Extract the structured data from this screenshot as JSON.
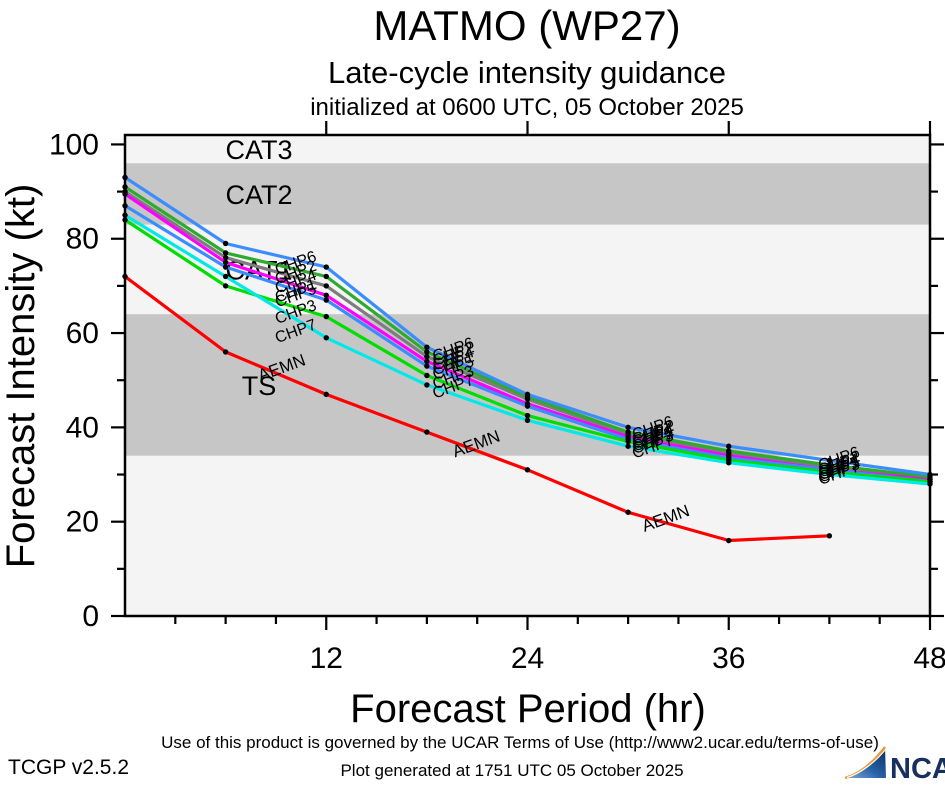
{
  "header": {
    "title": "MATMO (WP27)",
    "subtitle": "Late-cycle intensity guidance",
    "initialized": "initialized at 0600 UTC, 05 October 2025"
  },
  "chart_data": {
    "type": "line",
    "title": "MATMO (WP27)",
    "xlabel": "Forecast Period (hr)",
    "ylabel": "Forecast Intensity (kt)",
    "xlim": [
      0,
      48
    ],
    "ylim": [
      0,
      102
    ],
    "x_ticks": [
      12,
      24,
      36,
      48
    ],
    "x_minor_step": 3,
    "y_ticks": [
      0,
      20,
      40,
      60,
      80,
      100
    ],
    "y_minor_step": 10,
    "x_hours": [
      0,
      6,
      12,
      18,
      24,
      30,
      36,
      42,
      48
    ],
    "series": [
      {
        "name": "CHP4",
        "color": "#7d7d7d",
        "values": [
          90,
          76,
          70,
          55,
          46,
          38.5,
          34.5,
          31.5,
          29
        ]
      },
      {
        "name": "CHP1",
        "color": "#ff00ff",
        "values": [
          89.5,
          75,
          68,
          54,
          45,
          38,
          34,
          31,
          29
        ]
      },
      {
        "name": "CHP2",
        "color": "#2faa2f",
        "values": [
          91,
          77,
          72,
          56,
          46.5,
          39,
          35,
          32,
          29.5
        ]
      },
      {
        "name": "CHP5",
        "color": "#3b8dfd",
        "values": [
          87,
          74,
          67,
          53,
          44.5,
          37.5,
          33.5,
          31,
          28.5
        ]
      },
      {
        "name": "CHP3",
        "color": "#00dd00",
        "values": [
          84,
          70,
          63.5,
          51,
          42.5,
          37,
          33,
          30.5,
          28.5
        ]
      },
      {
        "name": "CHP7",
        "color": "#00e8e8",
        "values": [
          85,
          72,
          59,
          49,
          41.5,
          36,
          32.5,
          30,
          28
        ]
      },
      {
        "name": "CHP6",
        "color": "#3b8dfd",
        "values": [
          93,
          79,
          74,
          57,
          47,
          40,
          36,
          33,
          30
        ]
      },
      {
        "name": "AEMN",
        "color": "#ff0000",
        "values": [
          72,
          56,
          47,
          39,
          31,
          22,
          16,
          17,
          null
        ]
      }
    ],
    "bands": [
      {
        "label": "TS",
        "from": 34,
        "to": 64,
        "shaded": true,
        "label_color": "#ffffff"
      },
      {
        "label": "CAT1",
        "from": 64,
        "to": 83,
        "shaded": false,
        "label_color": "#c9c9c9"
      },
      {
        "label": "CAT2",
        "from": 83,
        "to": 96,
        "shaded": true,
        "label_color": "#ffffff"
      },
      {
        "label": "CAT3",
        "from": 96,
        "to": 102,
        "shaded": false,
        "label_color": "#c9c9c9"
      }
    ],
    "label_clusters": {
      "chp_end_time": 11.6,
      "chp_start_times": [
        18.3,
        30.2,
        41.3
      ],
      "aemn_times": [
        7.9,
        19.5,
        30.8
      ],
      "rotation_deg": -20
    },
    "colors": {
      "band_dark": "#c6c6c6",
      "band_light": "#f4f4f4",
      "frame": "#000000",
      "dot": "#000000"
    },
    "legend": "none"
  },
  "footer": {
    "terms": "Use of this product is governed by the UCAR Terms of Use (http://www2.ucar.edu/terms-of-use)",
    "version": "TCGP v2.5.2",
    "generated": "Plot generated at 1751 UTC   05 October 2025",
    "logo_text": "NCAR"
  }
}
